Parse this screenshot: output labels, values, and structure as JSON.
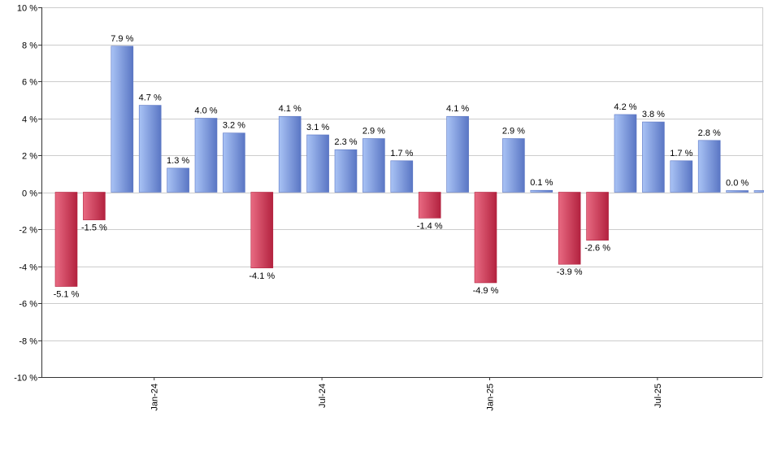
{
  "chart_data": {
    "type": "bar",
    "title": "",
    "xlabel": "",
    "ylabel": "",
    "ylim": [
      -10,
      10
    ],
    "yticks": [
      10,
      8,
      6,
      4,
      2,
      0,
      -2,
      -4,
      -6,
      -8,
      -10
    ],
    "ytick_labels": [
      "10 %",
      "8 %",
      "6 %",
      "4 %",
      "2 %",
      "0 %",
      "-2 %",
      "-4 %",
      "-6 %",
      "-8 %",
      "-10 %"
    ],
    "grid": true,
    "legend": "none",
    "categories": [
      "2023-10",
      "2023-11",
      "2023-12",
      "2024-01",
      "2024-02",
      "2024-03",
      "2024-04",
      "2024-05",
      "2024-06",
      "2024-07",
      "2024-08",
      "2024-09",
      "2024-10",
      "2024-11",
      "2024-12",
      "2025-01",
      "2025-02",
      "2025-03",
      "2025-04",
      "2025-05",
      "2025-06",
      "2025-07",
      "2025-08",
      "2025-09",
      "2025-10",
      "2025-11"
    ],
    "values": [
      -5.1,
      -1.5,
      7.9,
      4.7,
      1.3,
      4.0,
      3.2,
      -4.1,
      4.1,
      3.1,
      2.3,
      2.9,
      1.7,
      -1.4,
      4.1,
      -4.9,
      2.9,
      0.1,
      -3.9,
      -2.6,
      4.2,
      3.8,
      1.7,
      2.8,
      0.0,
      0.0
    ],
    "value_labels": [
      "-5.1 %",
      "-1.5 %",
      "7.9 %",
      "4.7 %",
      "1.3 %",
      "4.0 %",
      "3.2 %",
      "-4.1 %",
      "4.1 %",
      "3.1 %",
      "2.3 %",
      "2.9 %",
      "1.7 %",
      "-1.4 %",
      "4.1 %",
      "-4.9 %",
      "2.9 %",
      "0.1 %",
      "-3.9 %",
      "-2.6 %",
      "4.2 %",
      "3.8 %",
      "1.7 %",
      "2.8 %",
      "0.0 %",
      ""
    ],
    "xtick_labels": [
      {
        "label": "Jan-24",
        "category": "2024-01"
      },
      {
        "label": "Jul-24",
        "category": "2024-07"
      },
      {
        "label": "Jan-25",
        "category": "2025-01"
      },
      {
        "label": "Jul-25",
        "category": "2025-07"
      }
    ],
    "colors": {
      "positive_light": "#a9c3f5",
      "positive_dark": "#5a76c4",
      "negative_light": "#e86a82",
      "negative_dark": "#b3223f",
      "grid": "#cccccc",
      "axis": "#333333",
      "text": "#000000"
    }
  }
}
